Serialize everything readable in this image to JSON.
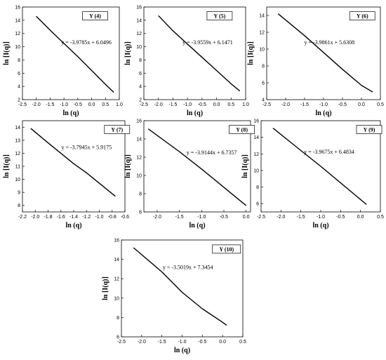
{
  "chart_data": [
    {
      "type": "line",
      "legend": "Y (4)",
      "equation": "y = -3.9785x + 6.0496",
      "xlabel": "ln (q)",
      "ylabel": "ln [I(q)]",
      "xlim": [
        -2.5,
        1.0
      ],
      "ylim": [
        2,
        16
      ],
      "xticks": [
        "-2.5",
        "-2.0",
        "-1.5",
        "-1.0",
        "-0.5",
        "0.0",
        "0.5",
        "1.0"
      ],
      "yticks": [
        "2",
        "4",
        "6",
        "8",
        "10",
        "12",
        "14",
        "16"
      ],
      "series": [
        {
          "x": [
            -2.0,
            -1.5,
            -1.0,
            -0.5,
            0.0,
            0.5,
            0.8
          ],
          "y": [
            14.6,
            12.5,
            10.5,
            8.5,
            6.4,
            4.3,
            3.1
          ]
        }
      ]
    },
    {
      "type": "line",
      "legend": "Y (5)",
      "equation": "y = -3.9559x + 6.1471",
      "xlabel": "ln (q)",
      "ylabel": "ln [I(q)]",
      "xlim": [
        -2.5,
        1.0
      ],
      "ylim": [
        2,
        16
      ],
      "xticks": [
        "-2.5",
        "-2.0",
        "-1.5",
        "-1.0",
        "-0.5",
        "0.0",
        "0.5",
        "1.0"
      ],
      "yticks": [
        "2",
        "4",
        "6",
        "8",
        "10",
        "12",
        "14",
        "16"
      ],
      "series": [
        {
          "x": [
            -2.0,
            -1.5,
            -1.0,
            -0.5,
            0.0,
            0.5,
            0.8
          ],
          "y": [
            14.7,
            12.4,
            10.4,
            8.4,
            6.4,
            4.4,
            3.3
          ]
        }
      ]
    },
    {
      "type": "line",
      "legend": "Y (6)",
      "equation": "y = -3.9861x + 5.6308",
      "xlabel": "ln (q)",
      "ylabel": "ln [I(q)]",
      "xlim": [
        -2.5,
        0.5
      ],
      "ylim": [
        4,
        15
      ],
      "xticks": [
        "-2.5",
        "-2.0",
        "-1.5",
        "-1.0",
        "-0.5",
        "0.0",
        "0.5"
      ],
      "yticks": [
        "4",
        "6",
        "8",
        "10",
        "12",
        "14"
      ],
      "series": [
        {
          "x": [
            -2.2,
            -1.5,
            -1.0,
            -0.5,
            0.0,
            0.3
          ],
          "y": [
            14.2,
            11.6,
            9.6,
            7.6,
            5.7,
            4.9
          ]
        }
      ]
    },
    {
      "type": "line",
      "legend": "Y (7)",
      "equation": "y = -3.7945x + 5.9175",
      "xlabel": "ln (q)",
      "ylabel": "ln [I(q)]",
      "xlim": [
        -2.2,
        -0.6
      ],
      "ylim": [
        7.5,
        14.5
      ],
      "xticks": [
        "-2.2",
        "-2.0",
        "-1.8",
        "-1.6",
        "-1.4",
        "-1.2",
        "-1.0",
        "-0.8",
        "-0.6"
      ],
      "yticks": [
        "8",
        "9",
        "10",
        "11",
        "12",
        "13",
        "14"
      ],
      "series": [
        {
          "x": [
            -2.07,
            -1.8,
            -1.6,
            -1.4,
            -1.2,
            -1.0,
            -0.75
          ],
          "y": [
            13.9,
            12.8,
            12.0,
            11.2,
            10.5,
            9.7,
            8.7
          ]
        }
      ]
    },
    {
      "type": "line",
      "legend": "Y (8)",
      "equation": "y = -3.9144x + 6.7357",
      "xlabel": "ln (q)",
      "ylabel": "ln [I(q)]",
      "xlim": [
        -2.3,
        0.1
      ],
      "ylim": [
        6,
        16
      ],
      "xticks": [
        "-2.0",
        "-1.5",
        "-1.0",
        "-0.5",
        "0.0"
      ],
      "yticks": [
        "6",
        "8",
        "10",
        "12",
        "14",
        "16"
      ],
      "series": [
        {
          "x": [
            -2.2,
            -1.5,
            -1.0,
            -0.5,
            0.0
          ],
          "y": [
            15.1,
            12.6,
            10.7,
            8.7,
            6.7
          ]
        }
      ]
    },
    {
      "type": "line",
      "legend": "Y (9)",
      "equation": "y = -3.9675x + 6.4834",
      "xlabel": "ln (q)",
      "ylabel": "ln [I(q)]",
      "xlim": [
        -2.5,
        0.5
      ],
      "ylim": [
        5,
        16
      ],
      "xticks": [
        "-2.5",
        "-2.0",
        "-1.5",
        "-1.0",
        "-0.5",
        "0.0",
        "0.5"
      ],
      "yticks": [
        "6",
        "8",
        "10",
        "12",
        "14",
        "16"
      ],
      "series": [
        {
          "x": [
            -2.2,
            -1.5,
            -1.0,
            -0.5,
            0.0,
            0.15
          ],
          "y": [
            15.1,
            12.4,
            10.5,
            8.5,
            6.5,
            5.9
          ]
        }
      ]
    },
    {
      "type": "line",
      "legend": "Y (10)",
      "equation": "y = -3.5019x + 7.3454",
      "xlabel": "ln (q)",
      "ylabel": "ln [I(q)]",
      "xlim": [
        -2.5,
        0.5
      ],
      "ylim": [
        6,
        16
      ],
      "xticks": [
        "-2.5",
        "-2.0",
        "-1.5",
        "-1.0",
        "-0.5",
        "0.0",
        "0.5"
      ],
      "yticks": [
        "6",
        "8",
        "10",
        "12",
        "14",
        "16"
      ],
      "series": [
        {
          "x": [
            -2.2,
            -1.5,
            -1.0,
            -0.5,
            0.0,
            0.1
          ],
          "y": [
            15.2,
            12.7,
            10.6,
            8.9,
            7.5,
            7.2
          ]
        }
      ]
    }
  ]
}
